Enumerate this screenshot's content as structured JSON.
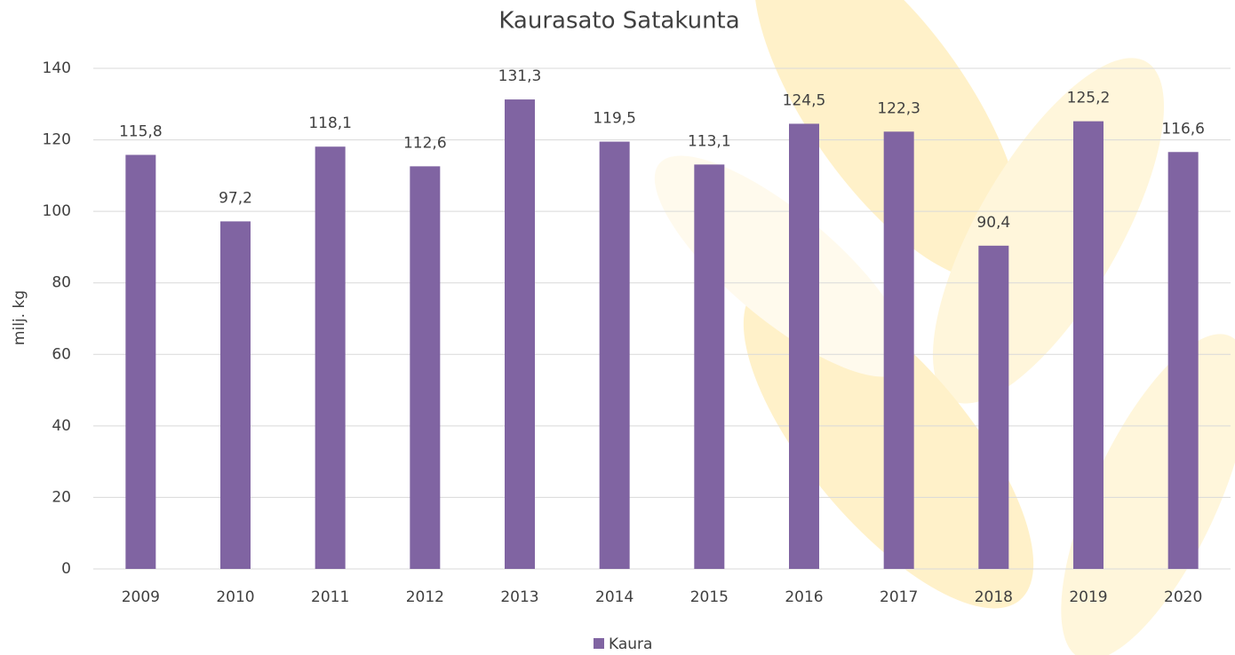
{
  "chart_data": {
    "type": "bar",
    "title": "Kaurasato Satakunta",
    "y_label": "milj. kg",
    "categories": [
      "2009",
      "2010",
      "2011",
      "2012",
      "2013",
      "2014",
      "2015",
      "2016",
      "2017",
      "2018",
      "2019",
      "2020"
    ],
    "series": [
      {
        "name": "Kaura",
        "color": "#8064a2",
        "values": [
          115.8,
          97.2,
          118.1,
          112.6,
          131.3,
          119.5,
          113.1,
          124.5,
          122.3,
          90.4,
          125.2,
          116.6
        ],
        "value_labels": [
          "115,8",
          "97,2",
          "118,1",
          "112,6",
          "131,3",
          "119,5",
          "113,1",
          "124,5",
          "122,3",
          "90,4",
          "125,2",
          "116,6"
        ]
      }
    ],
    "ylim": [
      0,
      140
    ],
    "yticks": [
      0,
      20,
      40,
      60,
      80,
      100,
      120,
      140
    ],
    "grid": true,
    "legend": "bottom"
  }
}
